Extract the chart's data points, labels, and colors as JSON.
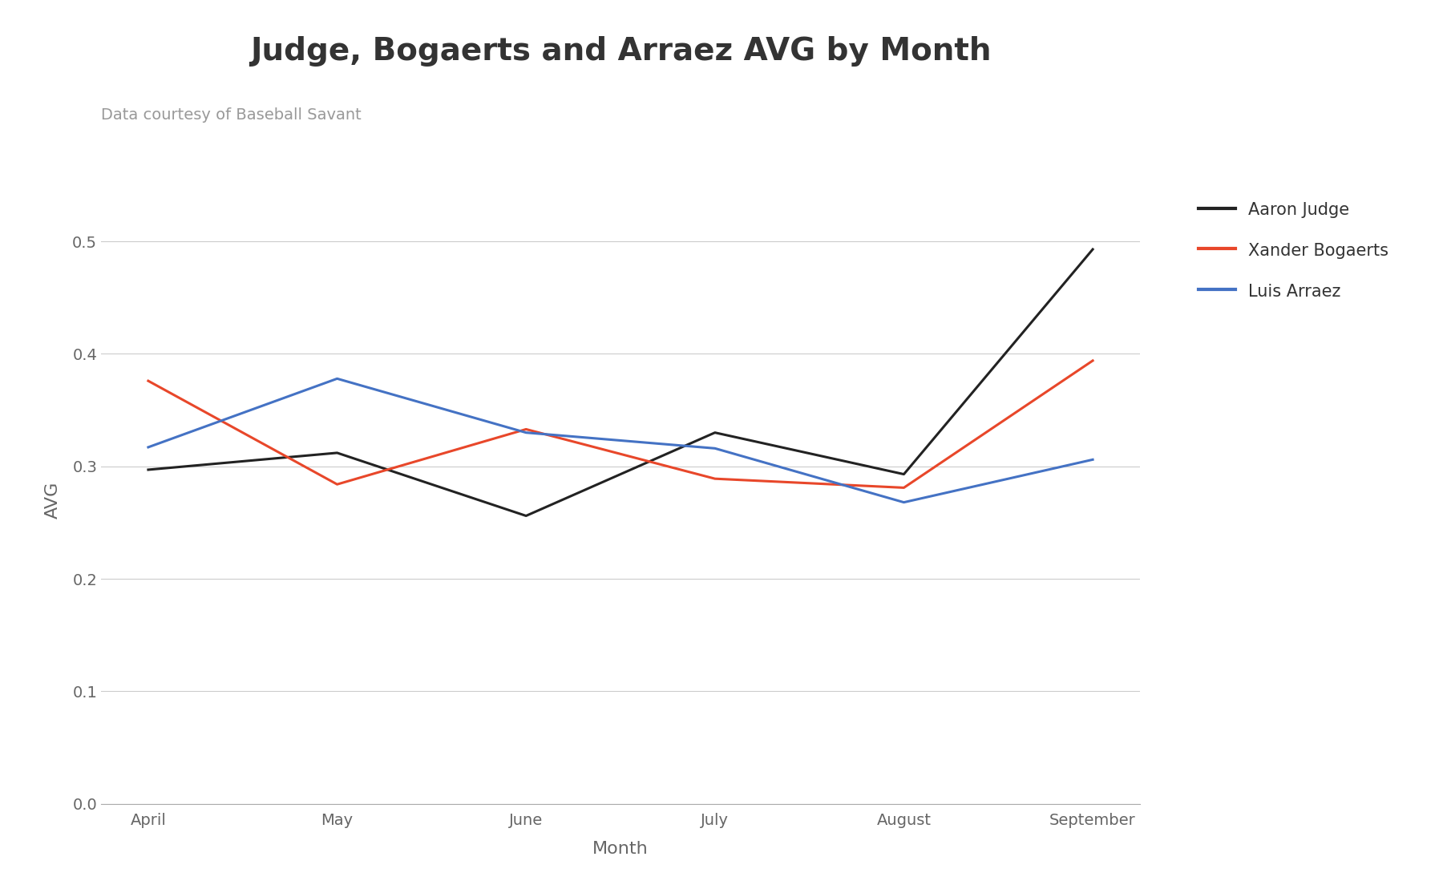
{
  "title": "Judge, Bogaerts and Arraez AVG by Month",
  "subtitle": "Data courtesy of Baseball Savant",
  "xlabel": "Month",
  "ylabel": "AVG",
  "months": [
    "April",
    "May",
    "June",
    "July",
    "August",
    "September"
  ],
  "judge": [
    0.297,
    0.312,
    0.256,
    0.33,
    0.293,
    0.493
  ],
  "bogaerts": [
    0.376,
    0.284,
    0.333,
    0.289,
    0.281,
    0.394
  ],
  "arraez": [
    0.317,
    0.378,
    0.33,
    0.316,
    0.268,
    0.306
  ],
  "judge_color": "#222222",
  "bogaerts_color": "#e8472a",
  "arraez_color": "#4472c4",
  "judge_label": "Aaron Judge",
  "bogaerts_label": "Xander Bogaerts",
  "arraez_label": "Luis Arraez",
  "ylim": [
    0.0,
    0.54
  ],
  "yticks": [
    0.0,
    0.1,
    0.2,
    0.3,
    0.4,
    0.5
  ],
  "background_color": "#ffffff",
  "grid_color": "#cccccc",
  "title_fontsize": 28,
  "subtitle_fontsize": 14,
  "label_fontsize": 16,
  "tick_fontsize": 14,
  "legend_fontsize": 15,
  "line_width": 2.2
}
